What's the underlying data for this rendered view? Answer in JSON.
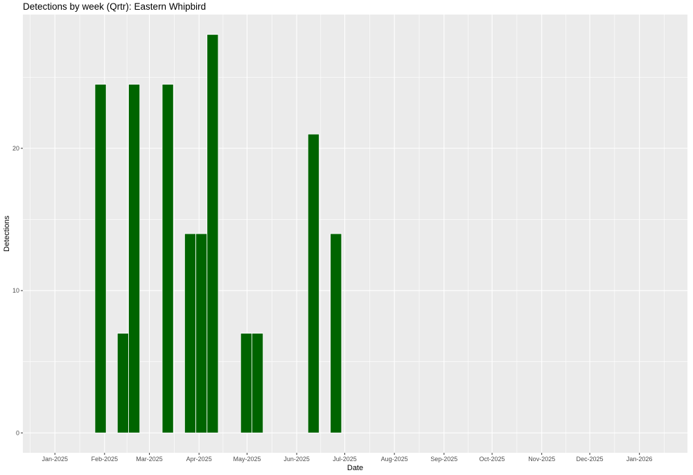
{
  "chart_data": {
    "type": "bar",
    "title": "Detections by week (Qrtr): Eastern Whipbird",
    "xlabel": "Date",
    "ylabel": "Detections",
    "x_axis_type": "date",
    "xlim": [
      "2024-12-12",
      "2026-01-31"
    ],
    "ylim": [
      -1.4,
      29.4
    ],
    "x_ticks": [
      "2025-01-01",
      "2025-02-01",
      "2025-03-01",
      "2025-04-01",
      "2025-05-01",
      "2025-06-01",
      "2025-07-01",
      "2025-08-01",
      "2025-09-01",
      "2025-10-01",
      "2025-11-01",
      "2025-12-01",
      "2026-01-01"
    ],
    "x_tick_labels": [
      "Jan-2025",
      "Feb-2025",
      "Mar-2025",
      "Apr-2025",
      "May-2025",
      "Jun-2025",
      "Jul-2025",
      "Aug-2025",
      "Sep-2025",
      "Oct-2025",
      "Nov-2025",
      "Dec-2025",
      "Jan-2026"
    ],
    "y_ticks": [
      0,
      10,
      20
    ],
    "y_tick_labels": [
      "0",
      "10",
      "20"
    ],
    "bar_color": "#006400",
    "panel_background": "#ebebeb",
    "grid": true,
    "bars": [
      {
        "week_start": "2025-01-26",
        "value": 24.5
      },
      {
        "week_start": "2025-02-09",
        "value": 7
      },
      {
        "week_start": "2025-02-16",
        "value": 24.5
      },
      {
        "week_start": "2025-03-09",
        "value": 24.5
      },
      {
        "week_start": "2025-03-23",
        "value": 14
      },
      {
        "week_start": "2025-03-30",
        "value": 14
      },
      {
        "week_start": "2025-04-06",
        "value": 28
      },
      {
        "week_start": "2025-04-27",
        "value": 7
      },
      {
        "week_start": "2025-05-04",
        "value": 7
      },
      {
        "week_start": "2025-06-08",
        "value": 21
      },
      {
        "week_start": "2025-06-22",
        "value": 14
      }
    ]
  }
}
